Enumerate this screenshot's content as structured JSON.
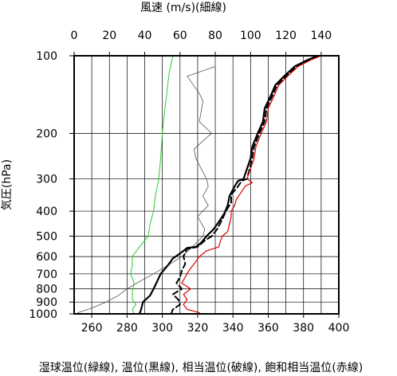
{
  "chart_data": {
    "type": "line",
    "title": "",
    "top_axis_label": "風速 (m/s)(細線)",
    "left_axis_label": "気圧(hPa)",
    "bottom_axis_label": "湿球温位(緑線), 温位(黒線), 相当温位(破線), 飽和相当温位(赤線)",
    "pressure_axis": {
      "scale": "log",
      "reversed": true,
      "range": [
        1000,
        100
      ],
      "ticks": [
        100,
        200,
        300,
        400,
        500,
        600,
        700,
        800,
        900,
        1000
      ]
    },
    "theta_axis": {
      "range": [
        250,
        400
      ],
      "ticks": [
        260,
        280,
        300,
        320,
        340,
        360,
        380,
        400
      ]
    },
    "wind_axis": {
      "range": [
        0,
        150
      ],
      "ticks": [
        0,
        20,
        40,
        60,
        80,
        100,
        120,
        140
      ]
    },
    "grid": true,
    "series": [
      {
        "key": "wind",
        "axis": "wind",
        "color": "#555555",
        "width": 0.8,
        "dash": "",
        "points": [
          [
            1,
            1000
          ],
          [
            3,
            985
          ],
          [
            10,
            950
          ],
          [
            18,
            900
          ],
          [
            25,
            850
          ],
          [
            30,
            800
          ],
          [
            37,
            750
          ],
          [
            45,
            700
          ],
          [
            53,
            650
          ],
          [
            61,
            600
          ],
          [
            67,
            550
          ],
          [
            73,
            500
          ],
          [
            74,
            470
          ],
          [
            70,
            420
          ],
          [
            76,
            380
          ],
          [
            73,
            350
          ],
          [
            76,
            320
          ],
          [
            75,
            300
          ],
          [
            69,
            250
          ],
          [
            68,
            230
          ],
          [
            76,
            205
          ],
          [
            78,
            200
          ],
          [
            71,
            180
          ],
          [
            73,
            150
          ],
          [
            71,
            140
          ],
          [
            64,
            120
          ],
          [
            80,
            110
          ],
          [
            80,
            100
          ]
        ]
      },
      {
        "key": "theta_w",
        "axis": "theta",
        "color": "#2fcc2f",
        "width": 1.0,
        "dash": "",
        "points": [
          [
            284,
            1000
          ],
          [
            283,
            960
          ],
          [
            285,
            920
          ],
          [
            283,
            880
          ],
          [
            283,
            820
          ],
          [
            284,
            760
          ],
          [
            282,
            700
          ],
          [
            283,
            650
          ],
          [
            283,
            600
          ],
          [
            287,
            550
          ],
          [
            292,
            500
          ],
          [
            293,
            450
          ],
          [
            295,
            400
          ],
          [
            296,
            350
          ],
          [
            298,
            300
          ],
          [
            299,
            250
          ],
          [
            300,
            200
          ],
          [
            301,
            170
          ],
          [
            302,
            150
          ],
          [
            303,
            130
          ],
          [
            304,
            115
          ],
          [
            306,
            100
          ]
        ]
      },
      {
        "key": "theta",
        "axis": "theta",
        "color": "#000000",
        "width": 2.2,
        "dash": "",
        "points": [
          [
            287,
            1000
          ],
          [
            288,
            960
          ],
          [
            289,
            900
          ],
          [
            293,
            850
          ],
          [
            295,
            800
          ],
          [
            297,
            750
          ],
          [
            299,
            700
          ],
          [
            303,
            650
          ],
          [
            306,
            610
          ],
          [
            309,
            590
          ],
          [
            312,
            570
          ],
          [
            314,
            555
          ],
          [
            319,
            550
          ],
          [
            322,
            530
          ],
          [
            325,
            500
          ],
          [
            329,
            470
          ],
          [
            332,
            440
          ],
          [
            335,
            410
          ],
          [
            337,
            380
          ],
          [
            338,
            350
          ],
          [
            341,
            320
          ],
          [
            343,
            305
          ],
          [
            346,
            300
          ],
          [
            350,
            250
          ],
          [
            351,
            225
          ],
          [
            354,
            200
          ],
          [
            357,
            180
          ],
          [
            358,
            160
          ],
          [
            362,
            140
          ],
          [
            364,
            130
          ],
          [
            369,
            120
          ],
          [
            375,
            110
          ],
          [
            382,
            104
          ],
          [
            388,
            100
          ]
        ]
      },
      {
        "key": "theta_e",
        "axis": "theta",
        "color": "#000000",
        "width": 2.0,
        "dash": "7,4",
        "points": [
          [
            305,
            1000
          ],
          [
            306,
            960
          ],
          [
            310,
            920
          ],
          [
            309,
            880
          ],
          [
            306,
            840
          ],
          [
            311,
            800
          ],
          [
            308,
            760
          ],
          [
            310,
            720
          ],
          [
            311,
            680
          ],
          [
            313,
            640
          ],
          [
            312,
            600
          ],
          [
            314,
            560
          ],
          [
            320,
            550
          ],
          [
            324,
            520
          ],
          [
            328,
            500
          ],
          [
            331,
            470
          ],
          [
            334,
            430
          ],
          [
            336,
            400
          ],
          [
            339,
            370
          ],
          [
            339,
            345
          ],
          [
            343,
            320
          ],
          [
            345,
            305
          ],
          [
            348,
            300
          ],
          [
            351,
            250
          ],
          [
            352,
            225
          ],
          [
            355,
            200
          ],
          [
            358,
            180
          ],
          [
            359,
            160
          ],
          [
            363,
            140
          ],
          [
            365,
            130
          ],
          [
            370,
            120
          ],
          [
            376,
            110
          ],
          [
            383,
            104
          ],
          [
            389,
            100
          ]
        ]
      },
      {
        "key": "theta_es",
        "axis": "theta",
        "color": "#dd0000",
        "width": 1.2,
        "dash": "",
        "points": [
          [
            321,
            990
          ],
          [
            314,
            960
          ],
          [
            312,
            920
          ],
          [
            314,
            880
          ],
          [
            312,
            840
          ],
          [
            316,
            800
          ],
          [
            311,
            760
          ],
          [
            313,
            720
          ],
          [
            315,
            680
          ],
          [
            318,
            640
          ],
          [
            321,
            600
          ],
          [
            325,
            570
          ],
          [
            332,
            550
          ],
          [
            333,
            520
          ],
          [
            334,
            500
          ],
          [
            337,
            480
          ],
          [
            338,
            450
          ],
          [
            339,
            420
          ],
          [
            339,
            400
          ],
          [
            341,
            380
          ],
          [
            342,
            360
          ],
          [
            347,
            320
          ],
          [
            351,
            310
          ],
          [
            348,
            300
          ],
          [
            352,
            250
          ],
          [
            353,
            225
          ],
          [
            356,
            200
          ],
          [
            359,
            180
          ],
          [
            360,
            160
          ],
          [
            364,
            140
          ],
          [
            366,
            130
          ],
          [
            371,
            120
          ],
          [
            377,
            110
          ],
          [
            384,
            104
          ],
          [
            390,
            100
          ]
        ]
      }
    ]
  }
}
